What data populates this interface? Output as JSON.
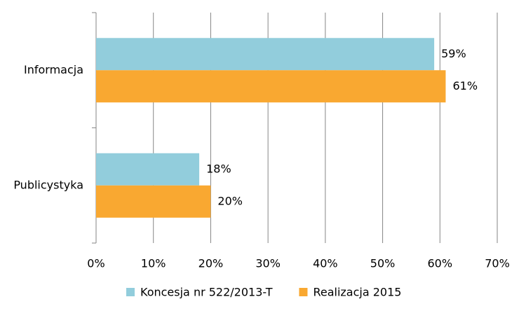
{
  "chart_data": {
    "type": "bar",
    "orientation": "horizontal",
    "categories": [
      "Informacja",
      "Publicystyka"
    ],
    "series": [
      {
        "name": "Koncesja nr 522/2013-T",
        "color": "#92cddc",
        "values": [
          59,
          18
        ],
        "value_labels": [
          "59%",
          "18%"
        ]
      },
      {
        "name": "Realizacja 2015",
        "color": "#f9a831",
        "values": [
          61,
          20
        ],
        "value_labels": [
          "61%",
          "20%"
        ]
      }
    ],
    "xlim": [
      0,
      70
    ],
    "xticks": [
      {
        "value": 0,
        "label": "0%"
      },
      {
        "value": 10,
        "label": "10%"
      },
      {
        "value": 20,
        "label": "20%"
      },
      {
        "value": 30,
        "label": "30%"
      },
      {
        "value": 40,
        "label": "40%"
      },
      {
        "value": 50,
        "label": "50%"
      },
      {
        "value": 60,
        "label": "60%"
      },
      {
        "value": 70,
        "label": "70%"
      }
    ],
    "grid": true,
    "legend": "bottom"
  }
}
